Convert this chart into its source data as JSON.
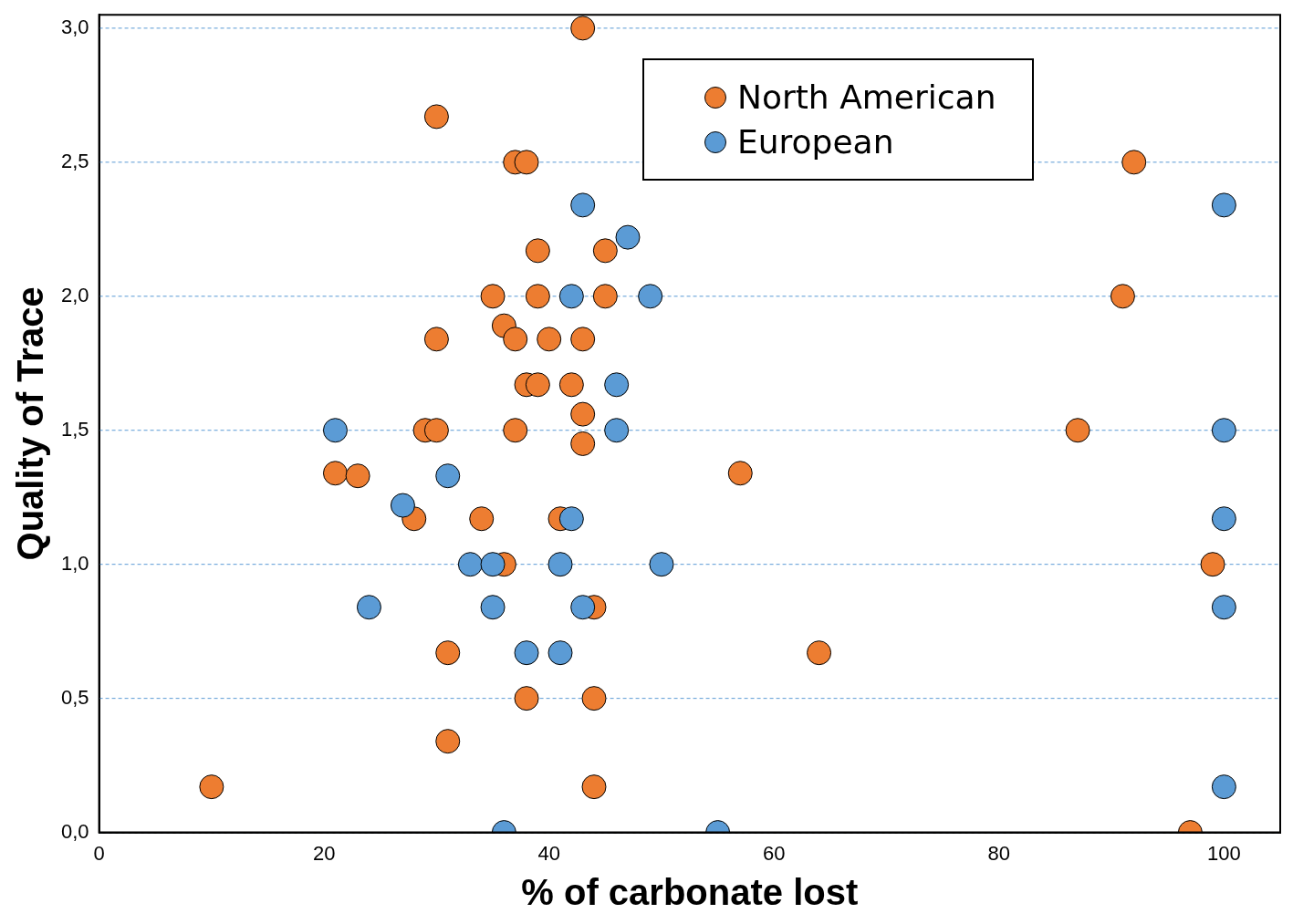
{
  "chart_data": {
    "type": "scatter",
    "xlabel": "% of carbonate lost",
    "ylabel": "Quality of Trace",
    "xlim": [
      0,
      105
    ],
    "xticks": [
      0,
      20,
      40,
      60,
      80,
      100
    ],
    "ylim": [
      0,
      3.05
    ],
    "yticks": [
      {
        "value": 0,
        "label": "0,0"
      },
      {
        "value": 0.5,
        "label": "0,5"
      },
      {
        "value": 1,
        "label": "1,0"
      },
      {
        "value": 1.5,
        "label": "1,5"
      },
      {
        "value": 2,
        "label": "2,0"
      },
      {
        "value": 2.5,
        "label": "2,5"
      },
      {
        "value": 3,
        "label": "3,0"
      }
    ],
    "grid": "y",
    "legend": "top right",
    "marker": "circle",
    "series": [
      {
        "name": "North American",
        "color": "#ed7d31",
        "x": [
          43,
          30,
          37,
          38,
          92,
          39,
          45,
          35,
          39,
          45,
          91,
          36,
          30,
          37,
          40,
          43,
          38,
          39,
          42,
          43,
          29,
          30,
          37,
          87,
          43,
          21,
          23,
          57,
          28,
          34,
          41,
          36,
          99,
          44,
          31,
          64,
          38,
          44,
          31,
          10,
          44,
          97
        ],
        "values": [
          3.0,
          2.67,
          2.5,
          2.5,
          2.5,
          2.17,
          2.17,
          2.0,
          2.0,
          2.0,
          2.0,
          1.89,
          1.84,
          1.84,
          1.84,
          1.84,
          1.67,
          1.67,
          1.67,
          1.56,
          1.5,
          1.5,
          1.5,
          1.5,
          1.45,
          1.34,
          1.33,
          1.34,
          1.17,
          1.17,
          1.17,
          1.0,
          1.0,
          0.84,
          0.67,
          0.67,
          0.5,
          0.5,
          0.34,
          0.17,
          0.17,
          0.0
        ]
      },
      {
        "name": "European",
        "color": "#5b9bd5",
        "x": [
          43,
          47,
          100,
          42,
          49,
          46,
          21,
          46,
          100,
          31,
          27,
          42,
          100,
          33,
          35,
          41,
          50,
          24,
          35,
          43,
          100,
          38,
          41,
          100,
          36,
          55
        ],
        "values": [
          2.34,
          2.22,
          2.34,
          2.0,
          2.0,
          1.67,
          1.5,
          1.5,
          1.5,
          1.33,
          1.22,
          1.17,
          1.17,
          1.0,
          1.0,
          1.0,
          1.0,
          0.84,
          0.84,
          0.84,
          0.84,
          0.67,
          0.67,
          0.17,
          0.0,
          0.0
        ]
      }
    ]
  }
}
